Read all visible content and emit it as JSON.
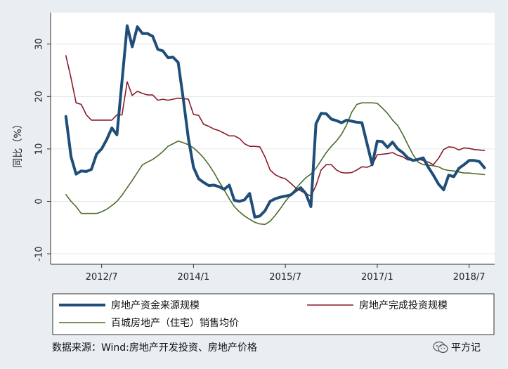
{
  "chart_data": {
    "type": "line",
    "title": "",
    "ylabel": "同比（%）",
    "xlabel": "",
    "x_range": [
      "2011-09",
      "2018-12"
    ],
    "ylim": [
      -12,
      36
    ],
    "yticks": [
      -10,
      0,
      10,
      20,
      30
    ],
    "xticks": [
      {
        "label": "2012/7",
        "date": "2012-07"
      },
      {
        "label": "2014/1",
        "date": "2014-01"
      },
      {
        "label": "2015/7",
        "date": "2015-07"
      },
      {
        "label": "2017/1",
        "date": "2017-01"
      },
      {
        "label": "2018/7",
        "date": "2018-07"
      }
    ],
    "grid": true,
    "legend_position": "bottom",
    "series": [
      {
        "name": "房地产资金来源规模",
        "color": "#1f4e79",
        "style": "thick",
        "points": [
          [
            "2011-12",
            16.2
          ],
          [
            "2012-01",
            8.5
          ],
          [
            "2012-02",
            5.2
          ],
          [
            "2012-03",
            5.8
          ],
          [
            "2012-04",
            5.7
          ],
          [
            "2012-05",
            6.1
          ],
          [
            "2012-06",
            9.0
          ],
          [
            "2012-07",
            10.0
          ],
          [
            "2012-08",
            11.8
          ],
          [
            "2012-09",
            14.0
          ],
          [
            "2012-10",
            12.7
          ],
          [
            "2012-11",
            23.0
          ],
          [
            "2012-12",
            33.5
          ],
          [
            "2013-01",
            29.5
          ],
          [
            "2013-02",
            33.3
          ],
          [
            "2013-03",
            32.0
          ],
          [
            "2013-04",
            32.0
          ],
          [
            "2013-05",
            31.5
          ],
          [
            "2013-06",
            29.0
          ],
          [
            "2013-07",
            28.7
          ],
          [
            "2013-08",
            27.4
          ],
          [
            "2013-09",
            27.5
          ],
          [
            "2013-10",
            26.5
          ],
          [
            "2013-11",
            19.5
          ],
          [
            "2013-12",
            12.0
          ],
          [
            "2014-01",
            6.5
          ],
          [
            "2014-02",
            4.3
          ],
          [
            "2014-03",
            3.6
          ],
          [
            "2014-04",
            3.0
          ],
          [
            "2014-05",
            3.1
          ],
          [
            "2014-06",
            2.8
          ],
          [
            "2014-07",
            2.3
          ],
          [
            "2014-08",
            3.1
          ],
          [
            "2014-09",
            0.2
          ],
          [
            "2014-10",
            0.0
          ],
          [
            "2014-11",
            0.3
          ],
          [
            "2014-12",
            1.5
          ],
          [
            "2015-01",
            -3.0
          ],
          [
            "2015-02",
            -2.8
          ],
          [
            "2015-03",
            -1.8
          ],
          [
            "2015-04",
            0.0
          ],
          [
            "2015-05",
            0.5
          ],
          [
            "2015-06",
            0.8
          ],
          [
            "2015-07",
            1.0
          ],
          [
            "2015-08",
            1.2
          ],
          [
            "2015-09",
            2.0
          ],
          [
            "2015-10",
            2.6
          ],
          [
            "2015-11",
            1.5
          ],
          [
            "2015-12",
            -1.0
          ],
          [
            "2016-01",
            14.8
          ],
          [
            "2016-02",
            16.8
          ],
          [
            "2016-03",
            16.7
          ],
          [
            "2016-04",
            15.7
          ],
          [
            "2016-05",
            15.4
          ],
          [
            "2016-06",
            15.0
          ],
          [
            "2016-07",
            15.5
          ],
          [
            "2016-08",
            15.3
          ],
          [
            "2016-09",
            15.1
          ],
          [
            "2016-10",
            15.0
          ],
          [
            "2016-11",
            11.0
          ],
          [
            "2016-12",
            7.0
          ],
          [
            "2017-01",
            11.5
          ],
          [
            "2017-02",
            11.4
          ],
          [
            "2017-03",
            10.3
          ],
          [
            "2017-04",
            11.3
          ],
          [
            "2017-05",
            10.0
          ],
          [
            "2017-06",
            9.3
          ],
          [
            "2017-07",
            8.3
          ],
          [
            "2017-08",
            7.8
          ],
          [
            "2017-09",
            8.0
          ],
          [
            "2017-10",
            8.3
          ],
          [
            "2017-11",
            6.5
          ],
          [
            "2017-12",
            5.0
          ],
          [
            "2018-01",
            3.3
          ],
          [
            "2018-02",
            2.2
          ],
          [
            "2018-03",
            5.0
          ],
          [
            "2018-04",
            4.7
          ],
          [
            "2018-05",
            6.3
          ],
          [
            "2018-06",
            7.0
          ],
          [
            "2018-07",
            7.8
          ],
          [
            "2018-08",
            7.8
          ],
          [
            "2018-09",
            7.6
          ],
          [
            "2018-10",
            6.4
          ]
        ]
      },
      {
        "name": "房地产完成投资规模",
        "color": "#8b1a2b",
        "style": "thin",
        "points": [
          [
            "2011-12",
            27.8
          ],
          [
            "2012-01",
            23.5
          ],
          [
            "2012-02",
            18.8
          ],
          [
            "2012-03",
            18.5
          ],
          [
            "2012-04",
            16.5
          ],
          [
            "2012-05",
            15.5
          ],
          [
            "2012-06",
            15.5
          ],
          [
            "2012-07",
            15.5
          ],
          [
            "2012-08",
            15.5
          ],
          [
            "2012-09",
            15.5
          ],
          [
            "2012-10",
            16.5
          ],
          [
            "2012-11",
            16.5
          ],
          [
            "2012-12",
            22.8
          ],
          [
            "2013-01",
            20.2
          ],
          [
            "2013-02",
            21.0
          ],
          [
            "2013-03",
            20.6
          ],
          [
            "2013-04",
            20.3
          ],
          [
            "2013-05",
            20.3
          ],
          [
            "2013-06",
            19.3
          ],
          [
            "2013-07",
            19.5
          ],
          [
            "2013-08",
            19.3
          ],
          [
            "2013-09",
            19.5
          ],
          [
            "2013-10",
            19.7
          ],
          [
            "2013-11",
            19.6
          ],
          [
            "2013-12",
            19.5
          ],
          [
            "2014-01",
            16.6
          ],
          [
            "2014-02",
            16.4
          ],
          [
            "2014-03",
            14.7
          ],
          [
            "2014-04",
            14.3
          ],
          [
            "2014-05",
            13.8
          ],
          [
            "2014-06",
            13.5
          ],
          [
            "2014-07",
            13.0
          ],
          [
            "2014-08",
            12.5
          ],
          [
            "2014-09",
            12.5
          ],
          [
            "2014-10",
            12.0
          ],
          [
            "2014-11",
            11.0
          ],
          [
            "2014-12",
            10.5
          ],
          [
            "2015-01",
            10.5
          ],
          [
            "2015-02",
            10.4
          ],
          [
            "2015-03",
            8.5
          ],
          [
            "2015-04",
            6.0
          ],
          [
            "2015-05",
            5.1
          ],
          [
            "2015-06",
            4.6
          ],
          [
            "2015-07",
            4.3
          ],
          [
            "2015-08",
            3.5
          ],
          [
            "2015-09",
            2.6
          ],
          [
            "2015-10",
            2.0
          ],
          [
            "2015-11",
            1.5
          ],
          [
            "2015-12",
            1.0
          ],
          [
            "2016-01",
            3.0
          ],
          [
            "2016-02",
            6.0
          ],
          [
            "2016-03",
            7.0
          ],
          [
            "2016-04",
            7.0
          ],
          [
            "2016-05",
            6.0
          ],
          [
            "2016-06",
            5.5
          ],
          [
            "2016-07",
            5.4
          ],
          [
            "2016-08",
            5.5
          ],
          [
            "2016-09",
            6.0
          ],
          [
            "2016-10",
            6.6
          ],
          [
            "2016-11",
            6.5
          ],
          [
            "2016-12",
            6.9
          ],
          [
            "2017-01",
            8.9
          ],
          [
            "2017-02",
            9.0
          ],
          [
            "2017-03",
            9.1
          ],
          [
            "2017-04",
            9.3
          ],
          [
            "2017-05",
            8.8
          ],
          [
            "2017-06",
            8.5
          ],
          [
            "2017-07",
            7.9
          ],
          [
            "2017-08",
            7.9
          ],
          [
            "2017-09",
            8.1
          ],
          [
            "2017-10",
            7.8
          ],
          [
            "2017-11",
            7.5
          ],
          [
            "2017-12",
            7.0
          ],
          [
            "2018-01",
            8.2
          ],
          [
            "2018-02",
            9.9
          ],
          [
            "2018-03",
            10.4
          ],
          [
            "2018-04",
            10.3
          ],
          [
            "2018-05",
            9.8
          ],
          [
            "2018-06",
            10.2
          ],
          [
            "2018-07",
            10.1
          ],
          [
            "2018-08",
            9.9
          ],
          [
            "2018-09",
            9.8
          ],
          [
            "2018-10",
            9.7
          ]
        ]
      },
      {
        "name": "百城房地产（住宅）销售均价",
        "color": "#4b6b2a",
        "style": "thin",
        "points": [
          [
            "2011-12",
            1.3
          ],
          [
            "2012-01",
            0.0
          ],
          [
            "2012-02",
            -1.0
          ],
          [
            "2012-03",
            -2.3
          ],
          [
            "2012-04",
            -2.3
          ],
          [
            "2012-05",
            -2.3
          ],
          [
            "2012-06",
            -2.3
          ],
          [
            "2012-07",
            -2.0
          ],
          [
            "2012-08",
            -1.5
          ],
          [
            "2012-09",
            -0.8
          ],
          [
            "2012-10",
            0.0
          ],
          [
            "2012-11",
            1.2
          ],
          [
            "2012-12",
            2.6
          ],
          [
            "2013-01",
            4.0
          ],
          [
            "2013-02",
            5.5
          ],
          [
            "2013-03",
            7.0
          ],
          [
            "2013-04",
            7.5
          ],
          [
            "2013-05",
            8.0
          ],
          [
            "2013-06",
            8.7
          ],
          [
            "2013-07",
            9.5
          ],
          [
            "2013-08",
            10.5
          ],
          [
            "2013-09",
            11.0
          ],
          [
            "2013-10",
            11.5
          ],
          [
            "2013-11",
            11.2
          ],
          [
            "2013-12",
            10.8
          ],
          [
            "2014-01",
            10.2
          ],
          [
            "2014-02",
            9.3
          ],
          [
            "2014-03",
            8.3
          ],
          [
            "2014-04",
            7.0
          ],
          [
            "2014-05",
            5.5
          ],
          [
            "2014-06",
            3.8
          ],
          [
            "2014-07",
            2.2
          ],
          [
            "2014-08",
            0.5
          ],
          [
            "2014-09",
            -1.0
          ],
          [
            "2014-10",
            -2.0
          ],
          [
            "2014-11",
            -2.8
          ],
          [
            "2014-12",
            -3.4
          ],
          [
            "2015-01",
            -4.0
          ],
          [
            "2015-02",
            -4.3
          ],
          [
            "2015-03",
            -4.4
          ],
          [
            "2015-04",
            -3.8
          ],
          [
            "2015-05",
            -2.7
          ],
          [
            "2015-06",
            -1.4
          ],
          [
            "2015-07",
            0.0
          ],
          [
            "2015-08",
            1.2
          ],
          [
            "2015-09",
            2.4
          ],
          [
            "2015-10",
            3.5
          ],
          [
            "2015-11",
            4.5
          ],
          [
            "2015-12",
            5.2
          ],
          [
            "2016-01",
            6.3
          ],
          [
            "2016-02",
            7.8
          ],
          [
            "2016-03",
            9.3
          ],
          [
            "2016-04",
            10.5
          ],
          [
            "2016-05",
            11.5
          ],
          [
            "2016-06",
            12.8
          ],
          [
            "2016-07",
            14.6
          ],
          [
            "2016-08",
            17.0
          ],
          [
            "2016-09",
            18.5
          ],
          [
            "2016-10",
            18.8
          ],
          [
            "2016-11",
            18.8
          ],
          [
            "2016-12",
            18.8
          ],
          [
            "2017-01",
            18.7
          ],
          [
            "2017-02",
            17.8
          ],
          [
            "2017-03",
            16.8
          ],
          [
            "2017-04",
            15.5
          ],
          [
            "2017-05",
            14.5
          ],
          [
            "2017-06",
            12.8
          ],
          [
            "2017-07",
            10.8
          ],
          [
            "2017-08",
            8.9
          ],
          [
            "2017-09",
            7.5
          ],
          [
            "2017-10",
            7.0
          ],
          [
            "2017-11",
            6.9
          ],
          [
            "2017-12",
            6.8
          ],
          [
            "2018-01",
            6.6
          ],
          [
            "2018-02",
            6.1
          ],
          [
            "2018-03",
            5.9
          ],
          [
            "2018-04",
            5.8
          ],
          [
            "2018-05",
            5.6
          ],
          [
            "2018-06",
            5.4
          ],
          [
            "2018-07",
            5.4
          ],
          [
            "2018-08",
            5.3
          ],
          [
            "2018-09",
            5.2
          ],
          [
            "2018-10",
            5.1
          ]
        ]
      }
    ]
  },
  "source_note": "数据来源：Wind:房地产开发投资、房地产价格",
  "brand": {
    "icon": "wechat-icon",
    "label": "平方记"
  }
}
